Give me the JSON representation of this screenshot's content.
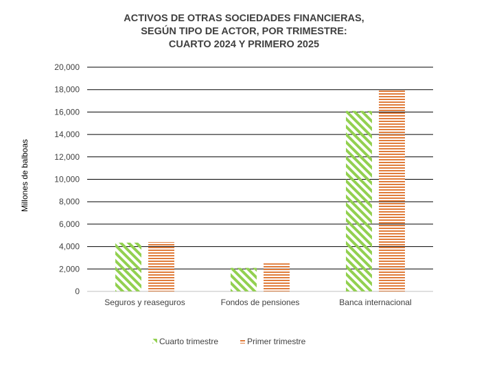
{
  "chart_data": {
    "type": "bar",
    "title_lines": [
      "ACTIVOS DE OTRAS SOCIEDADES FINANCIERAS,",
      "SEGÚN TIPO DE ACTOR, POR TRIMESTRE:",
      "CUARTO 2024 Y PRIMERO 2025"
    ],
    "ylabel": "Millones de balboas",
    "xlabel": "",
    "categories": [
      "Seguros y reaseguros",
      "Fondos de pensiones",
      "Banca internacional"
    ],
    "series": [
      {
        "name": "Cuarto trimestre",
        "values": [
          4350,
          2100,
          16100
        ],
        "color": "#92d050",
        "pattern": "diagonal-stripes"
      },
      {
        "name": "Primer trimestre",
        "values": [
          4400,
          2500,
          18000
        ],
        "color": "#e07b39",
        "pattern": "horizontal-stripes"
      }
    ],
    "ylim": [
      0,
      20000
    ],
    "yticks": [
      "0",
      "2,000",
      "4,000",
      "6,000",
      "8,000",
      "10,000",
      "12,000",
      "14,000",
      "16,000",
      "18,000",
      "20,000"
    ],
    "grid": true,
    "legend_position": "bottom"
  }
}
